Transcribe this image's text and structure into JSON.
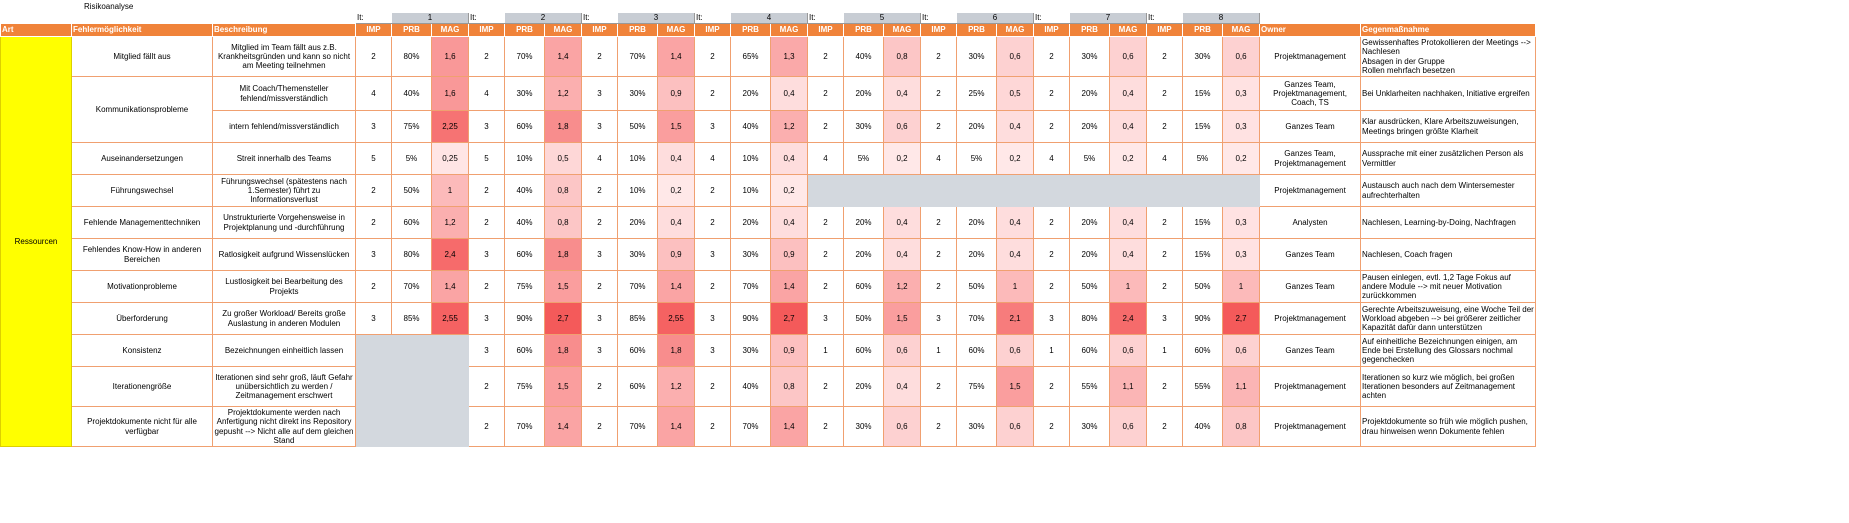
{
  "sheet": {
    "title": "Risikoanalyse",
    "iteration_label": "It:",
    "iterations": [
      "1",
      "2",
      "3",
      "4",
      "5",
      "6",
      "7",
      "8"
    ],
    "headers": {
      "art": "Art",
      "fehler": "Fehlermöglichkeit",
      "beschreibung": "Beschreibung",
      "imp": "IMP",
      "prb": "PRB",
      "mag": "MAG",
      "owner": "Owner",
      "gegen": "Gegenmaßnahme"
    },
    "category": "Ressourcen",
    "colors": {
      "header": "#f0833a",
      "category": "#ffff00",
      "grey": "#d3d8de"
    }
  },
  "risks": [
    {
      "name": "Mitglied fällt aus",
      "desc": "Mitglied im Team fällt aus z.B. Krankheitsgründen und kann so nicht am Meeting teilnehmen",
      "its": [
        [
          "2",
          "80%",
          "1,6"
        ],
        [
          "2",
          "70%",
          "1,4"
        ],
        [
          "2",
          "70%",
          "1,4"
        ],
        [
          "2",
          "65%",
          "1,3"
        ],
        [
          "2",
          "40%",
          "0,8"
        ],
        [
          "2",
          "30%",
          "0,6"
        ],
        [
          "2",
          "30%",
          "0,6"
        ],
        [
          "2",
          "30%",
          "0,6"
        ]
      ],
      "owner": "Projektmanagement",
      "measure": "Gewissenhaftes Protokollieren der Meetings --> Nachlesen\nAbsagen in der Gruppe\nRollen mehrfach besetzen"
    },
    {
      "name": "Kommunikationsprobleme",
      "desc": "Mit Coach/Themensteller fehlend/missverständlich",
      "its": [
        [
          "4",
          "40%",
          "1,6"
        ],
        [
          "4",
          "30%",
          "1,2"
        ],
        [
          "3",
          "30%",
          "0,9"
        ],
        [
          "2",
          "20%",
          "0,4"
        ],
        [
          "2",
          "20%",
          "0,4"
        ],
        [
          "2",
          "25%",
          "0,5"
        ],
        [
          "2",
          "20%",
          "0,4"
        ],
        [
          "2",
          "15%",
          "0,3"
        ]
      ],
      "owner": "Ganzes Team, Projektmanagement, Coach, TS",
      "measure": "Bei Unklarheiten nachhaken, Initiative ergreifen"
    },
    {
      "name": "",
      "desc": "intern fehlend/missverständlich",
      "its": [
        [
          "3",
          "75%",
          "2,25"
        ],
        [
          "3",
          "60%",
          "1,8"
        ],
        [
          "3",
          "50%",
          "1,5"
        ],
        [
          "3",
          "40%",
          "1,2"
        ],
        [
          "2",
          "30%",
          "0,6"
        ],
        [
          "2",
          "20%",
          "0,4"
        ],
        [
          "2",
          "20%",
          "0,4"
        ],
        [
          "2",
          "15%",
          "0,3"
        ]
      ],
      "owner": "Ganzes Team",
      "measure": "Klar ausdrücken, Klare Arbeitszuweisungen, Meetings bringen größte Klarheit"
    },
    {
      "name": "Auseinandersetzungen",
      "desc": "Streit innerhalb des Teams",
      "its": [
        [
          "5",
          "5%",
          "0,25"
        ],
        [
          "5",
          "10%",
          "0,5"
        ],
        [
          "4",
          "10%",
          "0,4"
        ],
        [
          "4",
          "10%",
          "0,4"
        ],
        [
          "4",
          "5%",
          "0,2"
        ],
        [
          "4",
          "5%",
          "0,2"
        ],
        [
          "4",
          "5%",
          "0,2"
        ],
        [
          "4",
          "5%",
          "0,2"
        ]
      ],
      "owner": "Ganzes Team, Projektmanagement",
      "measure": "Aussprache mit einer zusätzlichen Person als Vermittler"
    },
    {
      "name": "Führungswechsel",
      "desc": "Führungswechsel (spätestens nach 1.Semester) führt zu Informationsverlust",
      "its": [
        [
          "2",
          "50%",
          "1"
        ],
        [
          "2",
          "40%",
          "0,8"
        ],
        [
          "2",
          "10%",
          "0,2"
        ],
        [
          "2",
          "10%",
          "0,2"
        ],
        null,
        null,
        null,
        null
      ],
      "owner": "Projektmanagement",
      "measure": "Austausch auch nach dem Wintersemester aufrechterhalten"
    },
    {
      "name": "Fehlende Managementtechniken",
      "desc": "Unstrukturierte Vorgehensweise in Projektplanung und -durchführung",
      "its": [
        [
          "2",
          "60%",
          "1,2"
        ],
        [
          "2",
          "40%",
          "0,8"
        ],
        [
          "2",
          "20%",
          "0,4"
        ],
        [
          "2",
          "20%",
          "0,4"
        ],
        [
          "2",
          "20%",
          "0,4"
        ],
        [
          "2",
          "20%",
          "0,4"
        ],
        [
          "2",
          "20%",
          "0,4"
        ],
        [
          "2",
          "15%",
          "0,3"
        ]
      ],
      "owner": "Analysten",
      "measure": "Nachlesen, Learning-by-Doing, Nachfragen"
    },
    {
      "name": "Fehlendes Know-How in anderen Bereichen",
      "desc": "Ratlosigkeit aufgrund Wissenslücken",
      "its": [
        [
          "3",
          "80%",
          "2,4"
        ],
        [
          "3",
          "60%",
          "1,8"
        ],
        [
          "3",
          "30%",
          "0,9"
        ],
        [
          "3",
          "30%",
          "0,9"
        ],
        [
          "2",
          "20%",
          "0,4"
        ],
        [
          "2",
          "20%",
          "0,4"
        ],
        [
          "2",
          "20%",
          "0,4"
        ],
        [
          "2",
          "15%",
          "0,3"
        ]
      ],
      "owner": "Ganzes Team",
      "measure": "Nachlesen, Coach fragen"
    },
    {
      "name": "Motivationprobleme",
      "desc": "Lustlosigkeit bei Bearbeitung des Projekts",
      "its": [
        [
          "2",
          "70%",
          "1,4"
        ],
        [
          "2",
          "75%",
          "1,5"
        ],
        [
          "2",
          "70%",
          "1,4"
        ],
        [
          "2",
          "70%",
          "1,4"
        ],
        [
          "2",
          "60%",
          "1,2"
        ],
        [
          "2",
          "50%",
          "1"
        ],
        [
          "2",
          "50%",
          "1"
        ],
        [
          "2",
          "50%",
          "1"
        ]
      ],
      "owner": "Ganzes Team",
      "measure": "Pausen einlegen, evtl. 1,2 Tage Fokus auf andere Module --> mit neuer Motivation zurückkommen"
    },
    {
      "name": "Überforderung",
      "desc": "Zu großer Workload/ Bereits große Auslastung in anderen Modulen",
      "its": [
        [
          "3",
          "85%",
          "2,55"
        ],
        [
          "3",
          "90%",
          "2,7"
        ],
        [
          "3",
          "85%",
          "2,55"
        ],
        [
          "3",
          "90%",
          "2,7"
        ],
        [
          "3",
          "50%",
          "1,5"
        ],
        [
          "3",
          "70%",
          "2,1"
        ],
        [
          "3",
          "80%",
          "2,4"
        ],
        [
          "3",
          "90%",
          "2,7"
        ]
      ],
      "owner": "Projektmanagement",
      "measure": "Gerechte Arbeitszuweisung, eine Woche Teil der Workload abgeben --> bei größerer zeitlicher Kapazität dafür dann unterstützen"
    },
    {
      "name": "Konsistenz",
      "desc": "Bezeichnungen einheitlich lassen",
      "its": [
        null,
        [
          "3",
          "60%",
          "1,8"
        ],
        [
          "3",
          "60%",
          "1,8"
        ],
        [
          "3",
          "30%",
          "0,9"
        ],
        [
          "1",
          "60%",
          "0,6"
        ],
        [
          "1",
          "60%",
          "0,6"
        ],
        [
          "1",
          "60%",
          "0,6"
        ],
        [
          "1",
          "60%",
          "0,6"
        ]
      ],
      "owner": "Ganzes Team",
      "measure": "Auf einheitliche Bezeichnungen einigen, am Ende bei Erstellung des Glossars nochmal gegenchecken"
    },
    {
      "name": "Iterationengröße",
      "desc": "Iterationen sind sehr groß, läuft Gefahr unübersichtlich zu werden / Zeitmanagement erschwert",
      "its": [
        null,
        [
          "2",
          "75%",
          "1,5"
        ],
        [
          "2",
          "60%",
          "1,2"
        ],
        [
          "2",
          "40%",
          "0,8"
        ],
        [
          "2",
          "20%",
          "0,4"
        ],
        [
          "2",
          "75%",
          "1,5"
        ],
        [
          "2",
          "55%",
          "1,1"
        ],
        [
          "2",
          "55%",
          "1,1"
        ]
      ],
      "owner": "Projektmanagement",
      "measure": "Iterationen so kurz wie möglich, bei großen Iterationen besonders auf Zeitmanagement achten"
    },
    {
      "name": "Projektdokumente nicht für alle verfügbar",
      "desc": "Projektdokumente werden nach Anfertigung nicht direkt ins Repository gepusht --> Nicht alle auf dem gleichen Stand",
      "its": [
        null,
        [
          "2",
          "70%",
          "1,4"
        ],
        [
          "2",
          "70%",
          "1,4"
        ],
        [
          "2",
          "70%",
          "1,4"
        ],
        [
          "2",
          "30%",
          "0,6"
        ],
        [
          "2",
          "30%",
          "0,6"
        ],
        [
          "2",
          "30%",
          "0,6"
        ],
        [
          "2",
          "40%",
          "0,8"
        ]
      ],
      "owner": "Projektmanagement",
      "measure": "Projektdokumente so früh wie möglich pushen, drau hinweisen wenn Dokumente fehlen"
    }
  ]
}
